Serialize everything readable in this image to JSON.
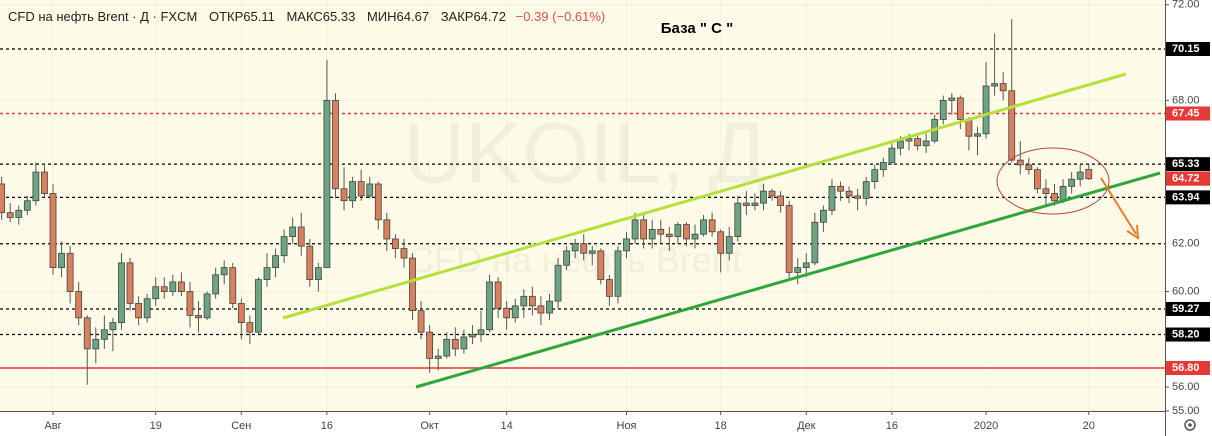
{
  "chart_data": {
    "type": "candlestick",
    "header": {
      "name": "CFD на нефть Brent · Д · FXCM",
      "open_label": "ОТКР",
      "high_label": "МАКС",
      "low_label": "МИН",
      "close_label": "ЗАКР",
      "change": "−0.39 (−0.61%)"
    },
    "watermark": {
      "symbol": "UKOIL, Д",
      "name": "CFD на нефть Brent"
    },
    "annotation": "База \" С \"",
    "background": "#fdfbe8",
    "up_color": "#6ba583",
    "down_color": "#d9805f",
    "ylim": [
      55,
      72.2
    ],
    "yticks": [
      {
        "value": 55,
        "label": "55.00"
      },
      {
        "value": 56,
        "label": "56.00"
      },
      {
        "value": 60,
        "label": "60.00"
      },
      {
        "value": 68,
        "label": "68.00"
      },
      {
        "value": 72,
        "label": "72.00"
      }
    ],
    "levels": [
      {
        "value": 70.15,
        "label": "70.15",
        "color": "#000000",
        "dashed": true,
        "boxed": true
      },
      {
        "value": 67.45,
        "label": "67.45",
        "color": "#e53935",
        "dashed": true,
        "boxed": true
      },
      {
        "value": 65.33,
        "label": "65.33",
        "color": "#000000",
        "dashed": true,
        "boxed": true
      },
      {
        "value": 63.94,
        "label": "63.94",
        "color": "#000000",
        "dashed": true,
        "boxed": true
      },
      {
        "value": 62,
        "label": "62.00",
        "color": "#000000",
        "dashed": true,
        "boxed": false
      },
      {
        "value": 59.27,
        "label": "59.27",
        "color": "#000000",
        "dashed": true,
        "boxed": true
      },
      {
        "value": 58.2,
        "label": "58.20",
        "color": "#000000",
        "dashed": true,
        "boxed": true
      },
      {
        "value": 56.8,
        "label": "56.80",
        "color": "#e53935",
        "dashed": false,
        "boxed": true
      }
    ],
    "last_price_color": "#e53935",
    "categories": [
      null,
      null,
      null,
      null,
      null,
      null,
      "Авг",
      null,
      null,
      null,
      null,
      null,
      null,
      null,
      null,
      null,
      null,
      null,
      "19",
      null,
      null,
      null,
      null,
      null,
      null,
      null,
      null,
      null,
      "Сен",
      null,
      null,
      null,
      null,
      null,
      null,
      null,
      null,
      null,
      "16",
      null,
      null,
      null,
      null,
      null,
      null,
      null,
      null,
      null,
      null,
      null,
      "Окт",
      null,
      null,
      null,
      null,
      null,
      null,
      null,
      null,
      "14",
      null,
      null,
      null,
      null,
      null,
      null,
      null,
      null,
      null,
      null,
      null,
      null,
      null,
      "Ноя",
      null,
      null,
      null,
      null,
      null,
      null,
      null,
      null,
      null,
      null,
      "18",
      null,
      null,
      null,
      null,
      null,
      null,
      null,
      null,
      null,
      "Дек",
      null,
      null,
      null,
      null,
      null,
      null,
      null,
      null,
      null,
      "16",
      null,
      null,
      null,
      null,
      null,
      null,
      null,
      null,
      null,
      null,
      "2020",
      null,
      null,
      null,
      null,
      null,
      null,
      null,
      null,
      null,
      null,
      null,
      "20",
      null
    ],
    "candles": [
      [
        64.5,
        64.8,
        63.0,
        63.3
      ],
      [
        63.3,
        63.7,
        62.9,
        63.1
      ],
      [
        63.1,
        63.6,
        62.8,
        63.4
      ],
      [
        63.4,
        64.0,
        63.2,
        63.8
      ],
      [
        63.8,
        65.4,
        63.6,
        65.0
      ],
      [
        65.0,
        65.3,
        63.9,
        64.1
      ],
      [
        64.1,
        64.5,
        60.7,
        61.0
      ],
      [
        61.0,
        62.1,
        60.6,
        61.6
      ],
      [
        61.6,
        61.9,
        59.5,
        60.0
      ],
      [
        60.0,
        60.4,
        58.6,
        58.9
      ],
      [
        58.9,
        59.0,
        56.1,
        57.6
      ],
      [
        57.6,
        58.5,
        57.0,
        58.0
      ],
      [
        58.0,
        59.0,
        57.6,
        58.4
      ],
      [
        58.4,
        58.9,
        57.5,
        58.7
      ],
      [
        58.7,
        61.6,
        58.4,
        61.2
      ],
      [
        61.2,
        61.4,
        59.2,
        59.5
      ],
      [
        59.5,
        59.8,
        58.6,
        58.9
      ],
      [
        58.9,
        59.9,
        58.7,
        59.7
      ],
      [
        59.7,
        60.6,
        59.4,
        60.2
      ],
      [
        60.2,
        60.6,
        59.7,
        60.0
      ],
      [
        60.0,
        60.7,
        59.8,
        60.4
      ],
      [
        60.4,
        60.8,
        59.8,
        60.0
      ],
      [
        60.0,
        60.4,
        58.5,
        59.0
      ],
      [
        59.0,
        59.6,
        58.3,
        58.9
      ],
      [
        58.9,
        60.0,
        58.8,
        59.9
      ],
      [
        59.9,
        61.0,
        59.7,
        60.7
      ],
      [
        60.7,
        61.3,
        60.3,
        61.0
      ],
      [
        61.0,
        61.2,
        59.3,
        59.5
      ],
      [
        59.5,
        59.7,
        58.0,
        58.7
      ],
      [
        58.7,
        59.0,
        57.8,
        58.3
      ],
      [
        58.3,
        60.6,
        58.2,
        60.5
      ],
      [
        60.5,
        61.6,
        60.2,
        61.0
      ],
      [
        61.0,
        61.8,
        60.6,
        61.5
      ],
      [
        61.5,
        62.6,
        61.2,
        62.3
      ],
      [
        62.3,
        63.1,
        62.0,
        62.7
      ],
      [
        62.7,
        63.3,
        61.5,
        61.9
      ],
      [
        61.9,
        62.2,
        60.2,
        60.5
      ],
      [
        60.5,
        61.2,
        60.0,
        61.0
      ],
      [
        61.0,
        69.7,
        61.0,
        68.0
      ],
      [
        68.0,
        68.3,
        63.9,
        64.3
      ],
      [
        64.3,
        65.2,
        63.4,
        63.8
      ],
      [
        63.8,
        64.8,
        63.5,
        64.6
      ],
      [
        64.6,
        65.1,
        63.8,
        64.0
      ],
      [
        64.0,
        64.8,
        63.9,
        64.5
      ],
      [
        64.5,
        64.6,
        62.6,
        63.0
      ],
      [
        63.0,
        63.3,
        61.7,
        62.2
      ],
      [
        62.2,
        62.4,
        61.4,
        61.8
      ],
      [
        61.8,
        62.2,
        61.0,
        61.4
      ],
      [
        61.4,
        61.6,
        58.8,
        59.2
      ],
      [
        59.2,
        59.6,
        58.0,
        58.3
      ],
      [
        58.3,
        58.6,
        56.6,
        57.2
      ],
      [
        57.2,
        57.6,
        56.7,
        57.3
      ],
      [
        57.3,
        58.3,
        57.2,
        58.0
      ],
      [
        58.0,
        58.5,
        57.3,
        57.6
      ],
      [
        57.6,
        58.4,
        57.4,
        58.1
      ],
      [
        58.1,
        58.6,
        57.8,
        58.2
      ],
      [
        58.2,
        59.2,
        57.9,
        58.4
      ],
      [
        58.4,
        60.7,
        58.3,
        60.4
      ],
      [
        60.4,
        60.6,
        58.9,
        59.3
      ],
      [
        59.3,
        59.6,
        58.4,
        58.9
      ],
      [
        58.9,
        59.7,
        58.7,
        59.4
      ],
      [
        59.4,
        60.1,
        58.9,
        59.8
      ],
      [
        59.8,
        60.2,
        59.0,
        59.4
      ],
      [
        59.4,
        59.8,
        58.6,
        59.1
      ],
      [
        59.1,
        59.9,
        58.8,
        59.6
      ],
      [
        59.6,
        61.4,
        59.3,
        61.1
      ],
      [
        61.1,
        61.9,
        60.9,
        61.7
      ],
      [
        61.7,
        62.2,
        61.4,
        62.0
      ],
      [
        62.0,
        62.4,
        61.3,
        61.6
      ],
      [
        61.6,
        61.9,
        61.1,
        61.7
      ],
      [
        61.7,
        61.8,
        60.3,
        60.5
      ],
      [
        60.5,
        60.7,
        59.4,
        59.8
      ],
      [
        59.8,
        61.9,
        59.5,
        61.7
      ],
      [
        61.7,
        62.5,
        61.4,
        62.2
      ],
      [
        62.2,
        63.3,
        62.0,
        63.0
      ],
      [
        63.0,
        63.2,
        61.8,
        62.2
      ],
      [
        62.2,
        63.0,
        61.8,
        62.6
      ],
      [
        62.6,
        63.0,
        62.0,
        62.4
      ],
      [
        62.4,
        62.7,
        61.7,
        62.3
      ],
      [
        62.3,
        62.9,
        62.0,
        62.8
      ],
      [
        62.8,
        62.9,
        61.9,
        62.2
      ],
      [
        62.2,
        62.8,
        61.8,
        62.4
      ],
      [
        62.4,
        63.2,
        62.3,
        63.0
      ],
      [
        63.0,
        63.3,
        62.3,
        62.5
      ],
      [
        62.5,
        62.6,
        60.8,
        61.6
      ],
      [
        61.6,
        62.7,
        61.3,
        62.3
      ],
      [
        62.3,
        64.0,
        62.1,
        63.7
      ],
      [
        63.7,
        64.2,
        63.2,
        63.6
      ],
      [
        63.6,
        64.1,
        63.4,
        63.7
      ],
      [
        63.7,
        64.5,
        63.4,
        64.2
      ],
      [
        64.2,
        64.3,
        63.8,
        64.0
      ],
      [
        64.0,
        64.2,
        63.3,
        63.6
      ],
      [
        63.6,
        63.8,
        60.5,
        60.8
      ],
      [
        60.8,
        61.4,
        60.3,
        61.0
      ],
      [
        61.0,
        61.6,
        60.6,
        61.2
      ],
      [
        61.2,
        63.3,
        61.1,
        62.9
      ],
      [
        62.9,
        63.6,
        62.5,
        63.4
      ],
      [
        63.4,
        64.7,
        63.2,
        64.4
      ],
      [
        64.4,
        64.6,
        63.8,
        64.2
      ],
      [
        64.2,
        64.4,
        63.7,
        64.0
      ],
      [
        64.0,
        64.3,
        63.4,
        63.9
      ],
      [
        63.9,
        64.8,
        63.6,
        64.6
      ],
      [
        64.6,
        65.3,
        64.3,
        65.1
      ],
      [
        65.1,
        65.6,
        64.8,
        65.4
      ],
      [
        65.4,
        66.2,
        65.3,
        66.0
      ],
      [
        66.0,
        66.5,
        65.7,
        66.3
      ],
      [
        66.3,
        66.6,
        65.9,
        66.4
      ],
      [
        66.4,
        66.6,
        65.9,
        66.1
      ],
      [
        66.1,
        66.6,
        65.8,
        66.3
      ],
      [
        66.3,
        67.4,
        66.2,
        67.2
      ],
      [
        67.2,
        68.2,
        67.0,
        68.0
      ],
      [
        68.0,
        68.3,
        67.4,
        68.1
      ],
      [
        68.1,
        68.2,
        66.8,
        67.2
      ],
      [
        67.2,
        67.3,
        65.9,
        66.5
      ],
      [
        66.5,
        66.9,
        65.7,
        66.6
      ],
      [
        66.6,
        69.6,
        66.4,
        68.6
      ],
      [
        68.6,
        70.8,
        68.2,
        68.7
      ],
      [
        68.7,
        69.2,
        68.0,
        68.4
      ],
      [
        68.4,
        71.4,
        65.4,
        65.5
      ],
      [
        65.5,
        66.3,
        64.9,
        65.3
      ],
      [
        65.3,
        65.6,
        64.9,
        65.1
      ],
      [
        65.1,
        65.2,
        64.1,
        64.3
      ],
      [
        64.3,
        64.7,
        63.6,
        64.1
      ],
      [
        64.1,
        64.5,
        63.6,
        63.8
      ],
      [
        63.8,
        64.7,
        63.7,
        64.4
      ],
      [
        64.4,
        65.0,
        64.1,
        64.7
      ],
      [
        64.7,
        65.3,
        64.4,
        65.0
      ],
      [
        65.11,
        65.33,
        64.67,
        64.72
      ]
    ]
  }
}
